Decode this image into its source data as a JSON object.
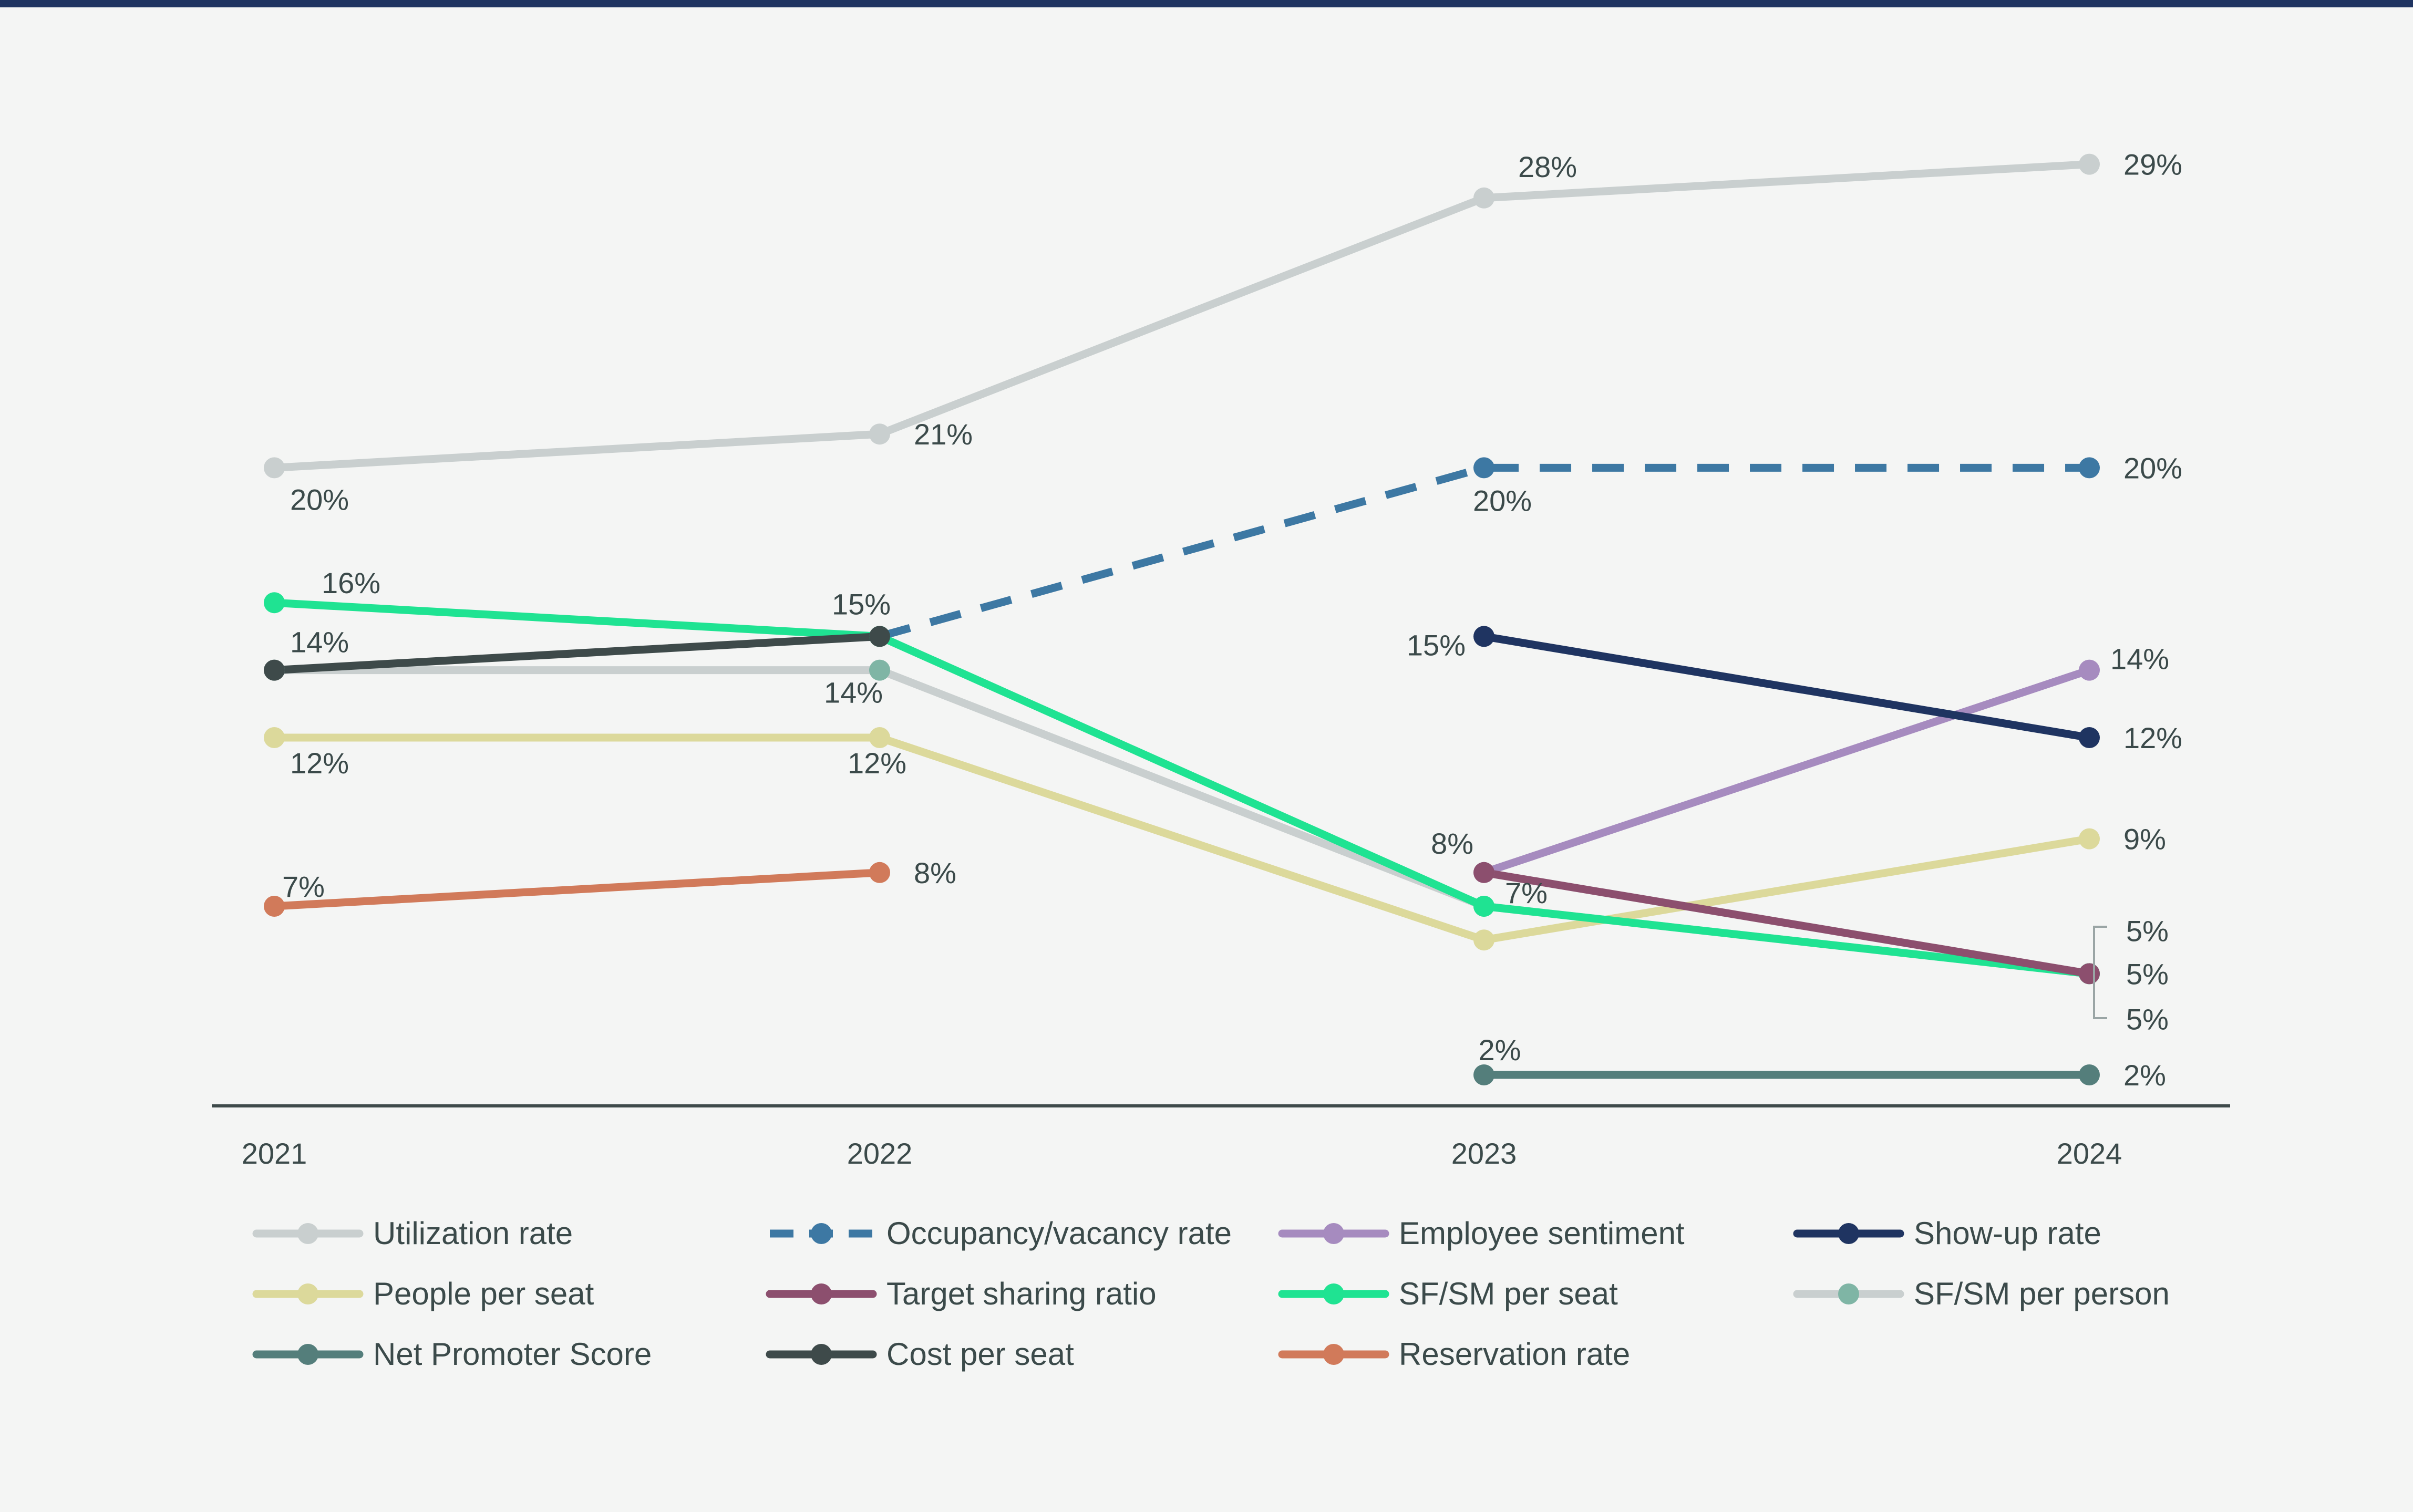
{
  "chart_data": {
    "type": "line",
    "title": "",
    "xlabel": "",
    "ylabel": "",
    "categories": [
      "2021",
      "2022",
      "2023",
      "2024"
    ],
    "ylim": [
      0,
      30
    ],
    "grid": false,
    "legend_position": "bottom",
    "series": [
      {
        "name": "Utilization rate",
        "color": "#c9cfcf",
        "dashed": false,
        "values": [
          20,
          21,
          28,
          29
        ],
        "labels": [
          "20%",
          "21%",
          "28%",
          "29%"
        ]
      },
      {
        "name": "Occupancy/vacancy rate",
        "color": "#3d78a3",
        "dashed": true,
        "values": [
          null,
          15,
          20,
          20
        ],
        "labels": [
          "",
          "",
          "20%",
          "20%"
        ]
      },
      {
        "name": "Employee sentiment",
        "color": "#a68bbf",
        "dashed": false,
        "values": [
          null,
          null,
          8,
          14
        ],
        "labels": [
          "",
          "",
          "",
          "14%"
        ]
      },
      {
        "name": "Show-up rate",
        "color": "#1f3461",
        "dashed": false,
        "values": [
          null,
          null,
          15,
          12
        ],
        "labels": [
          "",
          "",
          "15%",
          "12%"
        ]
      },
      {
        "name": "People per seat",
        "color": "#dcd99b",
        "dashed": false,
        "values": [
          12,
          12,
          6,
          9
        ],
        "labels": [
          "12%",
          "12%",
          "",
          "9%"
        ]
      },
      {
        "name": "Target sharing ratio",
        "color": "#8c4f6e",
        "dashed": false,
        "values": [
          null,
          null,
          8,
          5
        ],
        "labels": [
          "",
          "",
          "8%",
          "5%"
        ]
      },
      {
        "name": "SF/SM per seat",
        "color": "#1fe392",
        "dashed": false,
        "values": [
          16,
          15,
          7,
          5
        ],
        "labels": [
          "16%",
          "",
          "",
          "5%"
        ]
      },
      {
        "name": "SF/SM per person",
        "color": "#c9cfcf",
        "dot_color": "#7fb5a5",
        "dashed": false,
        "values": [
          14,
          14,
          7,
          5
        ],
        "labels": [
          "",
          "14%",
          "7%",
          "5%"
        ]
      },
      {
        "name": "Net Promoter Score",
        "color": "#547e7b",
        "dashed": false,
        "values": [
          null,
          null,
          2,
          2
        ],
        "labels": [
          "",
          "",
          "2%",
          "2%"
        ]
      },
      {
        "name": "Cost per seat",
        "color": "#3e4a4a",
        "dashed": false,
        "values": [
          14,
          15,
          null,
          null
        ],
        "labels": [
          "14%",
          "15%",
          "",
          ""
        ]
      },
      {
        "name": "Reservation rate",
        "color": "#d17a5a",
        "dashed": false,
        "values": [
          7,
          8,
          null,
          null
        ],
        "labels": [
          "7%",
          "8%",
          "",
          ""
        ]
      }
    ]
  }
}
